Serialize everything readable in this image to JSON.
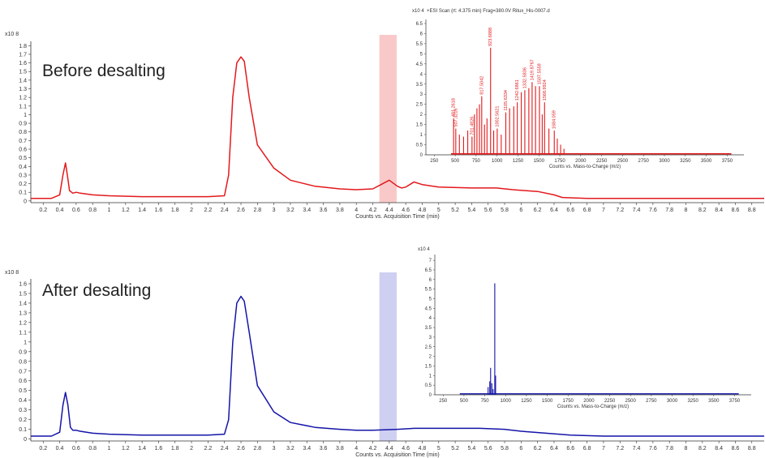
{
  "colors": {
    "top": "#e3191c",
    "bottom": "#1414a8",
    "top_highlight": "#f9c9c9",
    "bottom_highlight": "#cfcff2"
  },
  "annotations": {
    "top": "Before desalting",
    "bottom": "After desalting"
  },
  "chart_data": [
    {
      "type": "line",
      "name": "before-desalting-chromatogram",
      "xlabel": "Counts vs. Acquisition Time (min)",
      "ylabel": "",
      "y_scale_label": "x10 8",
      "xlim": [
        0.05,
        8.95
      ],
      "ylim": [
        -0.02,
        1.85
      ],
      "xticks": [
        0.2,
        0.4,
        0.6,
        0.8,
        1,
        1.2,
        1.4,
        1.6,
        1.8,
        2,
        2.2,
        2.4,
        2.6,
        2.8,
        3,
        3.2,
        3.4,
        3.6,
        3.8,
        4,
        4.2,
        4.4,
        4.6,
        4.8,
        5,
        5.2,
        5.4,
        5.6,
        5.8,
        6,
        6.2,
        6.4,
        6.6,
        6.8,
        7,
        7.2,
        7.4,
        7.6,
        7.8,
        8,
        8.2,
        8.4,
        8.6,
        8.8
      ],
      "yticks": [
        0,
        0.1,
        0.2,
        0.3,
        0.4,
        0.5,
        0.6,
        0.7,
        0.8,
        0.9,
        1,
        1.1,
        1.2,
        1.3,
        1.4,
        1.5,
        1.6,
        1.7,
        1.8
      ],
      "highlight_x": [
        4.28,
        4.49
      ],
      "series": [
        {
          "x": [
            0.05,
            0.3,
            0.4,
            0.44,
            0.47,
            0.49,
            0.52,
            0.56,
            0.6,
            0.65,
            0.8,
            1.0,
            1.4,
            1.8,
            2.2,
            2.4,
            2.45,
            2.5,
            2.55,
            2.6,
            2.64,
            2.7,
            2.8,
            3.0,
            3.2,
            3.5,
            3.8,
            4.0,
            4.2,
            4.3,
            4.4,
            4.5,
            4.55,
            4.6,
            4.7,
            4.8,
            5.0,
            5.4,
            5.7,
            5.9,
            6.2,
            6.4,
            6.5,
            6.8,
            7.5,
            8.95
          ],
          "y": [
            0.03,
            0.03,
            0.07,
            0.3,
            0.44,
            0.32,
            0.12,
            0.09,
            0.1,
            0.09,
            0.07,
            0.06,
            0.05,
            0.05,
            0.05,
            0.06,
            0.3,
            1.2,
            1.6,
            1.67,
            1.62,
            1.2,
            0.65,
            0.38,
            0.24,
            0.17,
            0.14,
            0.13,
            0.14,
            0.19,
            0.24,
            0.17,
            0.15,
            0.16,
            0.22,
            0.19,
            0.16,
            0.15,
            0.15,
            0.13,
            0.11,
            0.07,
            0.04,
            0.03,
            0.03,
            0.03
          ]
        }
      ]
    },
    {
      "type": "bar",
      "name": "before-desalting-mass-spectrum-inset",
      "title": "+ESI Scan (rt: 4.375 min) Frag=380.0V Ritux_His-0007.d",
      "xlabel": "Counts vs. Mass-to-Charge (m/z)",
      "y_scale_label": "x10 4",
      "xlim": [
        150,
        3950
      ],
      "ylim": [
        0,
        6.7
      ],
      "xticks": [
        250,
        500,
        750,
        1000,
        1250,
        1500,
        1750,
        2000,
        2250,
        2500,
        2750,
        3000,
        3250,
        3500,
        3750
      ],
      "yticks": [
        0,
        0.5,
        1,
        1.5,
        2,
        2.5,
        3,
        3.5,
        4,
        4.5,
        5,
        5.5,
        6,
        6.5
      ],
      "peak_labels": [
        "481.2618",
        "507.3216",
        "701.4826",
        "817.5042",
        "923.6888",
        "1002.5621",
        "1105.6334",
        "1242.6861",
        "1332.5836",
        "1419.8767",
        "1507.5559",
        "1568.9924",
        "1684.059"
      ],
      "peaks": {
        "mz": [
          481,
          507,
          550,
          600,
          650,
          701,
          730,
          760,
          790,
          817,
          850,
          880,
          923,
          960,
          1002,
          1050,
          1105,
          1150,
          1200,
          1242,
          1290,
          1332,
          1380,
          1419,
          1460,
          1507,
          1540,
          1568,
          1620,
          1684,
          1720,
          1760,
          1800
        ],
        "intensity": [
          1.8,
          1.3,
          1.0,
          0.9,
          1.2,
          0.9,
          2.0,
          2.3,
          2.5,
          2.9,
          1.5,
          1.8,
          5.3,
          1.2,
          1.3,
          1.0,
          2.1,
          2.3,
          2.4,
          2.6,
          3.1,
          3.2,
          3.3,
          3.6,
          3.4,
          3.4,
          2.0,
          2.6,
          1.3,
          1.2,
          0.8,
          0.5,
          0.3
        ]
      }
    },
    {
      "type": "line",
      "name": "after-desalting-chromatogram",
      "xlabel": "Counts vs. Acquisition Time (min)",
      "ylabel": "",
      "y_scale_label": "x10 8",
      "xlim": [
        0.05,
        8.95
      ],
      "ylim": [
        -0.02,
        1.65
      ],
      "xticks": [
        0.2,
        0.4,
        0.6,
        0.8,
        1,
        1.2,
        1.4,
        1.6,
        1.8,
        2,
        2.2,
        2.4,
        2.6,
        2.8,
        3,
        3.2,
        3.4,
        3.6,
        3.8,
        4,
        4.2,
        4.4,
        4.6,
        4.8,
        5,
        5.2,
        5.4,
        5.6,
        5.8,
        6,
        6.2,
        6.4,
        6.6,
        6.8,
        7,
        7.2,
        7.4,
        7.6,
        7.8,
        8,
        8.2,
        8.4,
        8.6,
        8.8
      ],
      "yticks": [
        0,
        0.1,
        0.2,
        0.3,
        0.4,
        0.5,
        0.6,
        0.7,
        0.8,
        0.9,
        1,
        1.1,
        1.2,
        1.3,
        1.4,
        1.5,
        1.6
      ],
      "highlight_x": [
        4.28,
        4.49
      ],
      "series": [
        {
          "x": [
            0.05,
            0.3,
            0.4,
            0.44,
            0.47,
            0.5,
            0.53,
            0.56,
            0.6,
            0.65,
            0.8,
            1.0,
            1.4,
            1.8,
            2.2,
            2.4,
            2.45,
            2.5,
            2.55,
            2.6,
            2.64,
            2.7,
            2.8,
            3.0,
            3.2,
            3.5,
            3.8,
            4.0,
            4.2,
            4.5,
            4.7,
            5.0,
            5.5,
            5.8,
            6.0,
            6.3,
            6.6,
            7.0,
            8.0,
            8.95
          ],
          "y": [
            0.03,
            0.03,
            0.07,
            0.35,
            0.48,
            0.35,
            0.12,
            0.09,
            0.09,
            0.08,
            0.06,
            0.05,
            0.04,
            0.04,
            0.04,
            0.05,
            0.2,
            1.0,
            1.4,
            1.47,
            1.42,
            1.1,
            0.55,
            0.28,
            0.17,
            0.12,
            0.1,
            0.09,
            0.09,
            0.1,
            0.11,
            0.11,
            0.11,
            0.1,
            0.08,
            0.06,
            0.04,
            0.03,
            0.03,
            0.03
          ]
        }
      ]
    },
    {
      "type": "bar",
      "name": "after-desalting-mass-spectrum-inset",
      "xlabel": "Counts vs. Mass-to-Charge (m/z)",
      "y_scale_label": "x10 4",
      "xlim": [
        150,
        3950
      ],
      "ylim": [
        0,
        7.3
      ],
      "xticks": [
        250,
        500,
        750,
        1000,
        1250,
        1500,
        1750,
        2000,
        2250,
        2500,
        2750,
        3000,
        3250,
        3500,
        3750
      ],
      "yticks": [
        0,
        0.5,
        1,
        1.5,
        2,
        2.5,
        3,
        3.5,
        4,
        4.5,
        5,
        5.5,
        6,
        6.5,
        7
      ],
      "peaks": {
        "mz": [
          790,
          810,
          820,
          835,
          850,
          870,
          880
        ],
        "intensity": [
          0.4,
          0.7,
          1.4,
          0.6,
          0.3,
          5.8,
          1.0
        ]
      }
    }
  ]
}
